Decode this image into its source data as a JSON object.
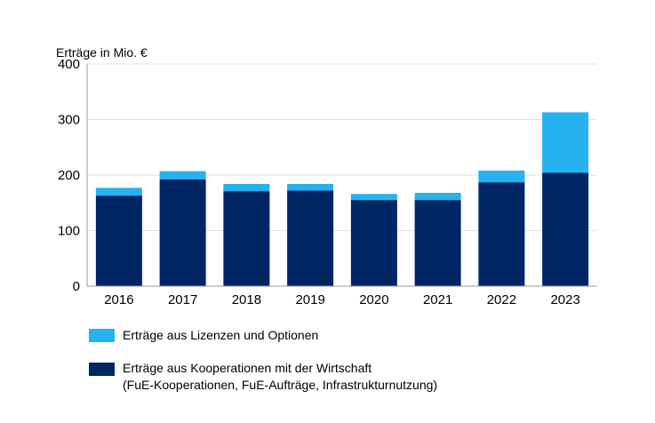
{
  "chart_data": {
    "type": "bar",
    "stacked": true,
    "ylabel": "Erträge in Mio. €",
    "categories": [
      "2016",
      "2017",
      "2018",
      "2019",
      "2020",
      "2021",
      "2022",
      "2023"
    ],
    "yticks": [
      "0",
      "100",
      "200",
      "300",
      "400"
    ],
    "ylim": [
      0,
      400
    ],
    "grid": true,
    "legend_position": "bottom",
    "series": [
      {
        "name": "Erträge aus Kooperationen mit der Wirtschaft",
        "name_line2": "(FuE-Kooperationen, FuE-Aufträge, Infrastrukturnutzung)",
        "color": "#002664",
        "values": [
          163,
          192,
          171,
          172,
          155,
          155,
          187,
          204
        ]
      },
      {
        "name": "Erträge aus Lizenzen und Optionen",
        "color": "#26b1f0",
        "values": [
          14,
          15,
          13,
          12,
          11,
          13,
          21,
          109
        ]
      }
    ]
  }
}
